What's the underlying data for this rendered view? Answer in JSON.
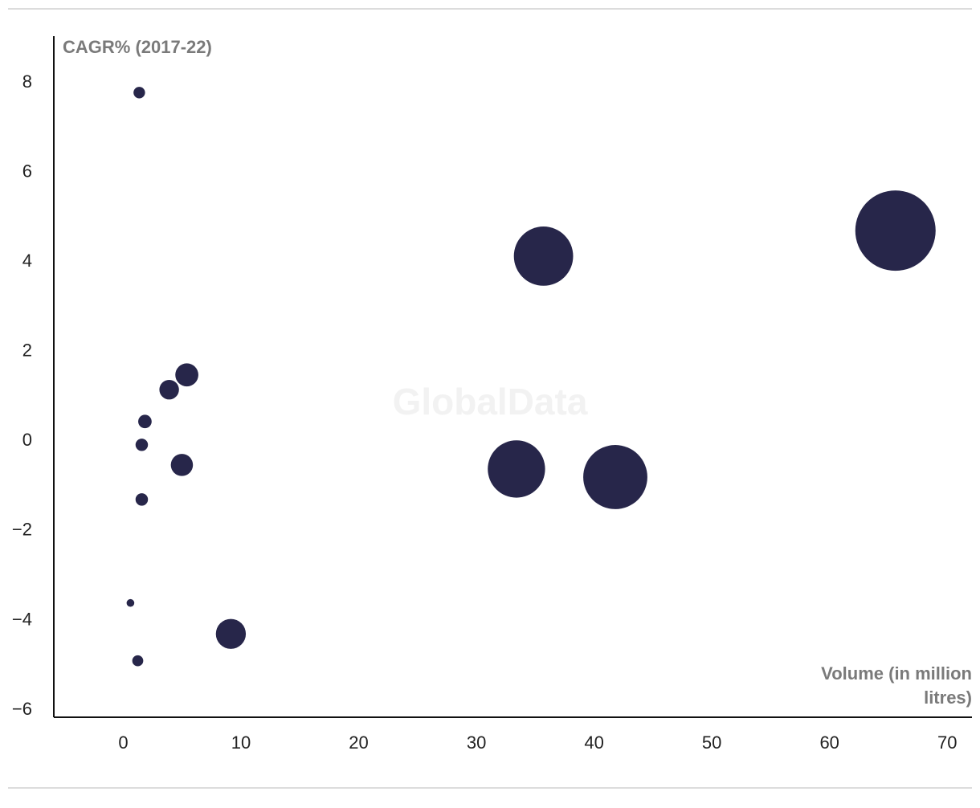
{
  "chart_data": {
    "type": "scatter",
    "y_label": "CAGR% (2017-22)",
    "x_label": "Volume (in million litres)",
    "watermark": "GlobalData",
    "color": "#27264a",
    "size_by": "x",
    "x": [
      1.36,
      65.6,
      35.7,
      5.4,
      3.9,
      1.84,
      1.57,
      4.98,
      33.4,
      41.8,
      1.57,
      0.61,
      9.14,
      1.23
    ],
    "values": [
      7.78,
      4.7,
      4.13,
      1.48,
      1.15,
      0.44,
      -0.08,
      -0.53,
      -0.62,
      -0.8,
      -1.3,
      -3.61,
      -4.3,
      -4.9
    ],
    "xlim": [
      -5.9,
      72.1
    ],
    "ylim": [
      -6.16,
      9.04
    ],
    "xticks": [
      0,
      10,
      20,
      30,
      40,
      50,
      60,
      70
    ],
    "yticks": [
      {
        "value": -6,
        "label": "−6"
      },
      {
        "value": -4,
        "label": "−4"
      },
      {
        "value": -2,
        "label": "−2"
      },
      0,
      2,
      4,
      6,
      8
    ]
  }
}
